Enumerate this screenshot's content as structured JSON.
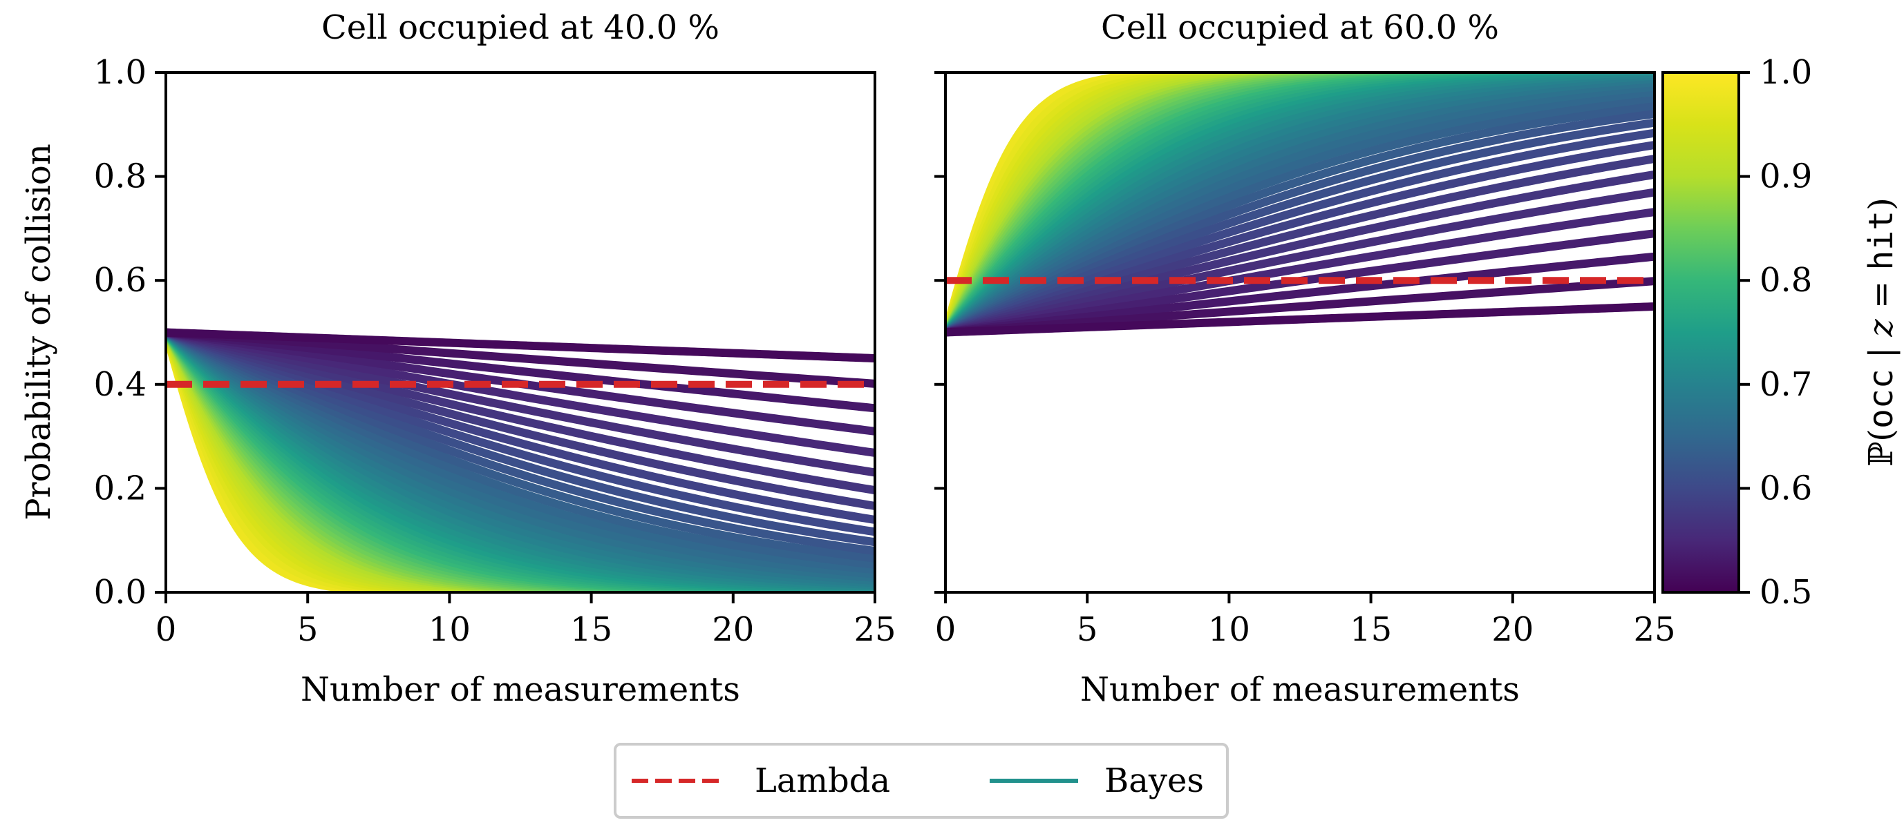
{
  "chart_data": [
    {
      "type": "line",
      "title": "Cell occupied at 40.0 %",
      "xlabel": "Number of measurements",
      "ylabel": "Probability of collision",
      "xlim": [
        0,
        25
      ],
      "ylim": [
        0.0,
        1.0
      ],
      "xticks": [
        "0",
        "5",
        "10",
        "15",
        "20",
        "25"
      ],
      "yticks": [
        "0.0",
        "0.2",
        "0.4",
        "0.6",
        "0.8",
        "1.0"
      ],
      "occupancy": 0.4,
      "lambda_level": 0.4,
      "bayes_prior": 0.5,
      "bayes_param_range": [
        0.51,
        0.98
      ],
      "bayes_param_step": 0.01
    },
    {
      "type": "line",
      "title": "Cell occupied at 60.0 %",
      "xlabel": "Number of measurements",
      "ylabel": "",
      "xlim": [
        0,
        25
      ],
      "ylim": [
        0.0,
        1.0
      ],
      "xticks": [
        "0",
        "5",
        "10",
        "15",
        "20",
        "25"
      ],
      "yticks": [],
      "occupancy": 0.6,
      "lambda_level": 0.6,
      "bayes_prior": 0.5,
      "bayes_param_range": [
        0.51,
        0.98
      ],
      "bayes_param_step": 0.01
    }
  ],
  "colorbar": {
    "label_prefix": "ℙ(",
    "label_mono1": "occ",
    "label_mid": " | z = ",
    "label_mono2": "hit",
    "label_suffix": ")",
    "range": [
      0.5,
      1.0
    ],
    "ticks": [
      "0.5",
      "0.6",
      "0.7",
      "0.8",
      "0.9",
      "1.0"
    ],
    "colormap": "viridis"
  },
  "legend": {
    "entries": [
      {
        "label": "Lambda",
        "color": "#d62728",
        "style": "dashed"
      },
      {
        "label": "Bayes",
        "color": "#21918c",
        "style": "solid"
      }
    ],
    "placement": "bottom-center"
  },
  "colors": {
    "lambda": "#d62728",
    "axes": "#000000"
  }
}
